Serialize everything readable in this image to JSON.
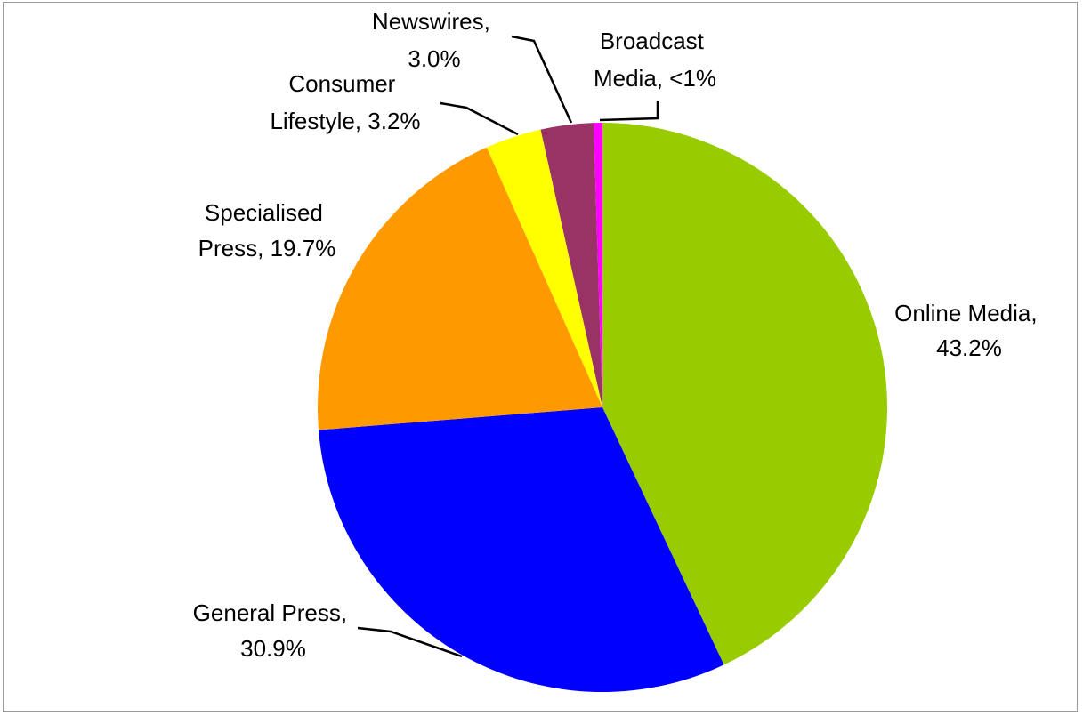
{
  "chart_data": {
    "type": "pie",
    "title": "",
    "slices": [
      {
        "label": "Online Media",
        "label_text": "Online Media,",
        "percent_text": "43.2%",
        "value": 43.2,
        "color": "#99cc00"
      },
      {
        "label": "General Press",
        "label_text": "General Press,",
        "percent_text": "30.9%",
        "value": 30.9,
        "color": "#0000ff"
      },
      {
        "label": "Specialised Press",
        "label_text": "Specialised",
        "label_text2": "Press,",
        "percent_text": "19.7%",
        "value": 19.7,
        "color": "#ff9900"
      },
      {
        "label": "Consumer Lifestyle",
        "label_text": "Consumer",
        "label_text2": "Lifestyle,",
        "percent_text": "3.2%",
        "value": 3.2,
        "color": "#ffff00"
      },
      {
        "label": "Newswires",
        "label_text": "Newswires,",
        "percent_text": "3.0%",
        "value": 3.0,
        "color": "#993366"
      },
      {
        "label": "Broadcast Media",
        "label_text": "Broadcast",
        "label_text2": "Media,",
        "percent_text": "<1%",
        "value": 0.5,
        "color": "#ff00ff"
      }
    ],
    "start_angle_deg": 0,
    "direction": "clockwise",
    "legend": "none"
  }
}
